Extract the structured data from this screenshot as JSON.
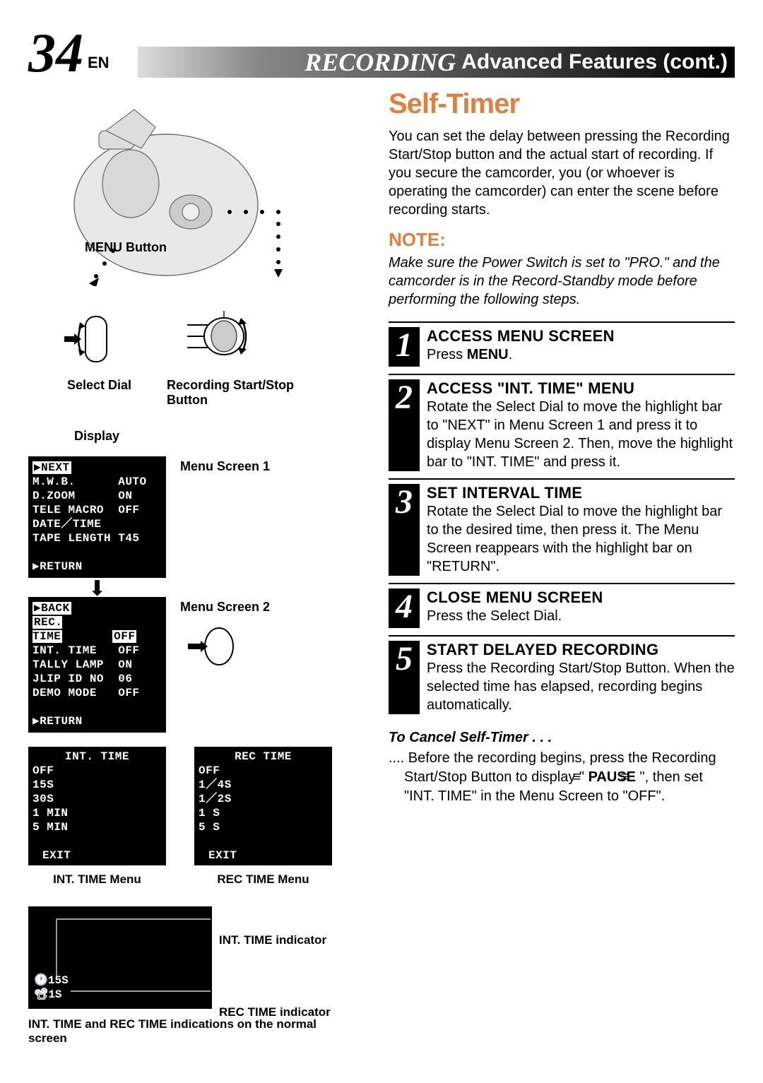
{
  "header": {
    "page_num": "34",
    "lang": "EN",
    "rec_label": "RECORDING",
    "subtitle": "Advanced Features (cont.)"
  },
  "left": {
    "menu_button": "MENU Button",
    "select_dial": "Select Dial",
    "rec_button": "Recording Start/Stop Button",
    "display": "Display",
    "menu_screen1_caption": "Menu Screen 1",
    "menu_screen2_caption": "Menu Screen 2",
    "screen1": {
      "next": "▶NEXT",
      "items": [
        [
          "M.W.B.",
          "AUTO"
        ],
        [
          "D.ZOOM",
          "ON"
        ],
        [
          "TELE MACRO",
          "OFF"
        ],
        [
          "DATE／TIME",
          ""
        ],
        [
          "TAPE LENGTH",
          "T45"
        ]
      ],
      "return": "▶RETURN"
    },
    "screen2": {
      "back": "▶BACK",
      "items": [
        [
          "REC. TIME",
          "OFF"
        ],
        [
          "INT. TIME",
          "OFF"
        ],
        [
          "TALLY LAMP",
          "ON"
        ],
        [
          "JLIP ID NO",
          "06"
        ],
        [
          "DEMO MODE",
          "OFF"
        ]
      ],
      "return": "▶RETURN"
    },
    "int_time_menu": {
      "title": "INT. TIME",
      "items": [
        "OFF",
        "15S",
        "30S",
        "1 MIN",
        "5 MIN"
      ],
      "exit": "EXIT",
      "caption": "INT. TIME Menu"
    },
    "rec_time_menu": {
      "title": "REC TIME",
      "items": [
        "OFF",
        "1／4S",
        "1／2S",
        "1 S",
        "5 S"
      ],
      "exit": "EXIT",
      "caption": "REC TIME Menu"
    },
    "indicator": {
      "int_val": "15S",
      "rec_val": "1S",
      "int_label": "INT. TIME indicator",
      "rec_label": "REC TIME indicator",
      "caption": "INT. TIME and REC TIME indications on the normal screen"
    }
  },
  "right": {
    "title": "Self-Timer",
    "intro": "You can set the delay between pressing the Recording Start/Stop button and the actual start of recording. If you secure the camcorder, you (or whoever is operating the camcorder) can enter the scene before recording starts.",
    "note_hdr": "NOTE:",
    "note_txt": "Make sure the Power Switch is set to \"PRO.\" and the camcorder is in the Record-Standby mode before performing the following steps.",
    "steps": [
      {
        "n": "1",
        "title": "ACCESS MENU SCREEN",
        "txt_pre": "Press ",
        "txt_bold": "MENU",
        "txt_post": "."
      },
      {
        "n": "2",
        "title": "ACCESS \"INT. TIME\" MENU",
        "txt": "Rotate the Select Dial to move the highlight bar to \"NEXT\" in Menu Screen 1 and press it to display Menu Screen 2. Then, move the highlight bar to \"INT. TIME\" and press it."
      },
      {
        "n": "3",
        "title": "SET INTERVAL TIME",
        "txt": "Rotate the Select Dial to move the highlight bar to the desired time, then press it. The Menu Screen reappears with the highlight bar on \"RETURN\"."
      },
      {
        "n": "4",
        "title": "CLOSE MENU SCREEN",
        "txt": "Press the Select Dial."
      },
      {
        "n": "5",
        "title": "START DELAYED RECORDING",
        "txt": "Press the Recording Start/Stop Button. When the selected time has elapsed, recording begins automatically."
      }
    ],
    "cancel_hdr": "To Cancel Self-Timer . . .",
    "cancel_txt_pre": ".... Before the recording begins, press the Recording Start/Stop Button to display \" ",
    "cancel_pause": "PAUSE",
    "cancel_txt_post": " \", then set \"INT. TIME\" in the Menu Screen to \"OFF\"."
  },
  "colors": {
    "accent": "#e08040"
  }
}
